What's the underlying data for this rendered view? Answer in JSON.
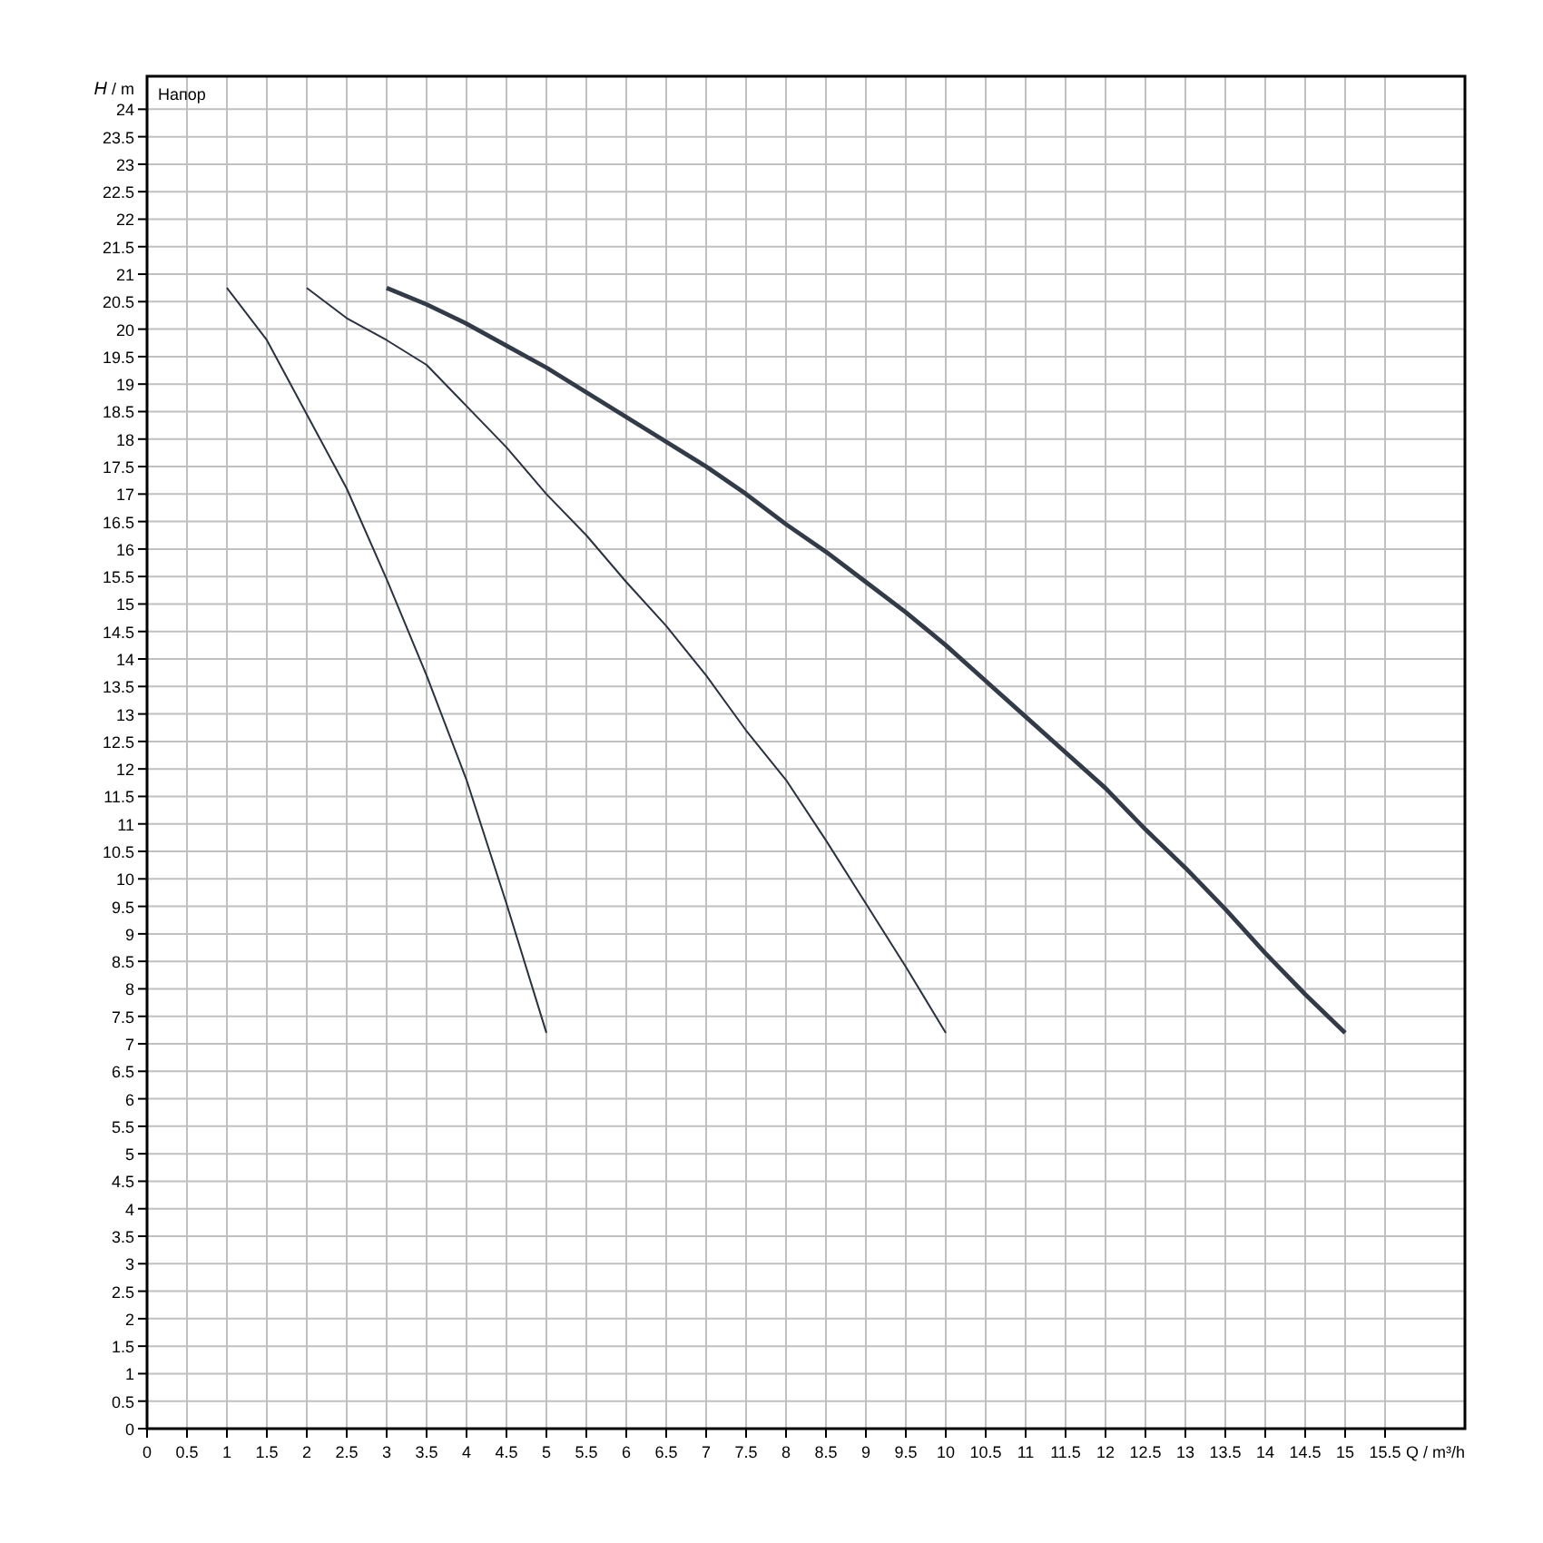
{
  "chart_data": {
    "type": "line",
    "xlabel": "Q / m³/h",
    "ylabel": "H / m",
    "annotations": [
      "Напор"
    ],
    "xlim": [
      0,
      16.5
    ],
    "ylim": [
      0,
      24.6
    ],
    "xticks": [
      0,
      0.5,
      1,
      1.5,
      2,
      2.5,
      3,
      3.5,
      4,
      4.5,
      5,
      5.5,
      6,
      6.5,
      7,
      7.5,
      8,
      8.5,
      9,
      9.5,
      10,
      10.5,
      11,
      11.5,
      12,
      12.5,
      13,
      13.5,
      14,
      14.5,
      15,
      15.5
    ],
    "yticks": [
      0,
      0.5,
      1,
      1.5,
      2,
      2.5,
      3,
      3.5,
      4,
      4.5,
      5,
      5.5,
      6,
      6.5,
      7,
      7.5,
      8,
      8.5,
      9,
      9.5,
      10,
      10.5,
      11,
      11.5,
      12,
      12.5,
      13,
      13.5,
      14,
      14.5,
      15,
      15.5,
      16,
      16.5,
      17,
      17.5,
      18,
      18.5,
      19,
      19.5,
      20,
      20.5,
      21,
      21.5,
      22,
      22.5,
      23,
      23.5,
      24
    ],
    "grid": true,
    "marker": "none",
    "line_style": "solid",
    "series": [
      {
        "color": "#2a3140",
        "x": [
          1,
          1.5,
          2,
          2.5,
          3,
          3.5,
          4,
          4.5,
          5
        ],
        "values": [
          20.75,
          19.8,
          18.45,
          17.1,
          15.45,
          13.7,
          11.8,
          9.55,
          7.2
        ]
      },
      {
        "color": "#2a3140",
        "x": [
          2,
          2.5,
          3,
          3.5,
          4,
          4.5,
          5,
          5.5,
          6,
          6.5,
          7,
          7.5,
          8,
          8.5,
          9,
          9.5,
          10
        ],
        "values": [
          20.75,
          20.2,
          19.8,
          19.35,
          18.6,
          17.85,
          17.0,
          16.25,
          15.4,
          14.6,
          13.7,
          12.7,
          11.8,
          10.7,
          9.55,
          8.4,
          7.2
        ]
      },
      {
        "color": "#333a48",
        "x": [
          3,
          3.5,
          4,
          4.5,
          5,
          5.5,
          6,
          6.5,
          7,
          7.5,
          8,
          8.5,
          9,
          9.5,
          10,
          10.5,
          11,
          11.5,
          12,
          12.5,
          13,
          13.5,
          14,
          14.5,
          15
        ],
        "values": [
          20.75,
          20.45,
          20.1,
          19.7,
          19.3,
          18.85,
          18.4,
          17.95,
          17.5,
          17.0,
          16.45,
          15.95,
          15.4,
          14.85,
          14.25,
          13.6,
          12.95,
          12.3,
          11.65,
          10.9,
          10.2,
          9.45,
          8.65,
          7.9,
          7.2
        ]
      }
    ]
  }
}
